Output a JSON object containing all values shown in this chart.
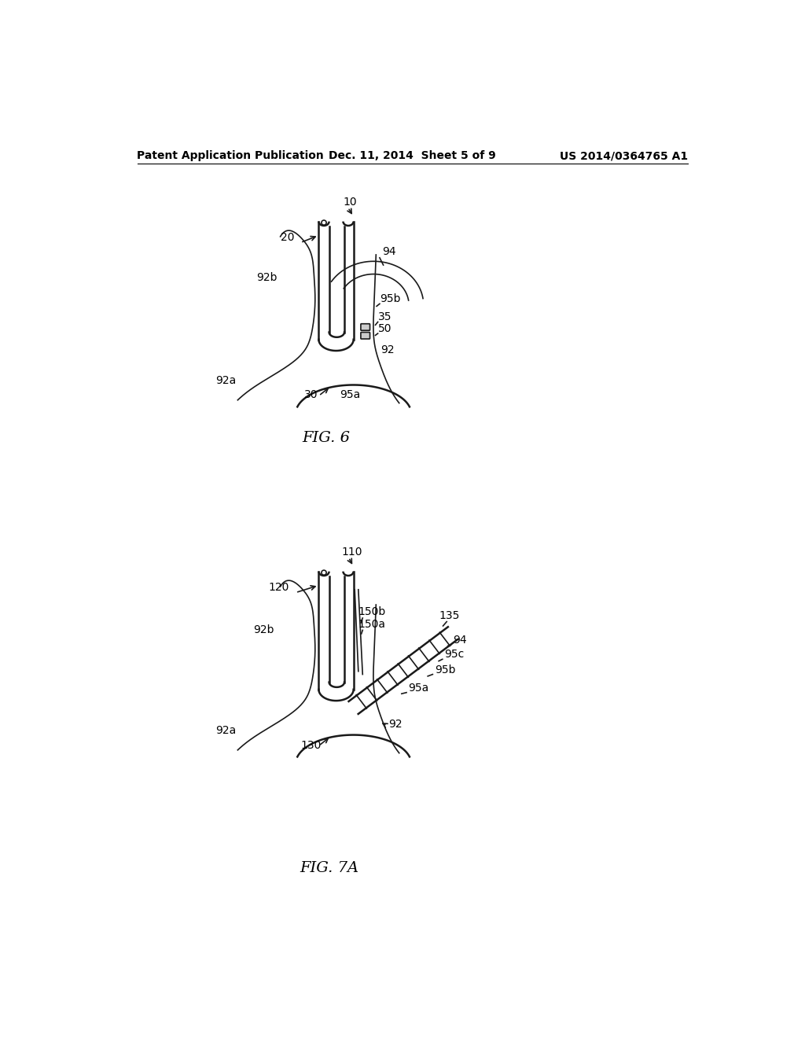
{
  "background_color": "#ffffff",
  "header": {
    "left": "Patent Application Publication",
    "center": "Dec. 11, 2014  Sheet 5 of 9",
    "right": "US 2014/0364765 A1",
    "fontsize": 10
  },
  "fig6_caption": "FIG. 6",
  "fig7a_caption": "FIG. 7A"
}
